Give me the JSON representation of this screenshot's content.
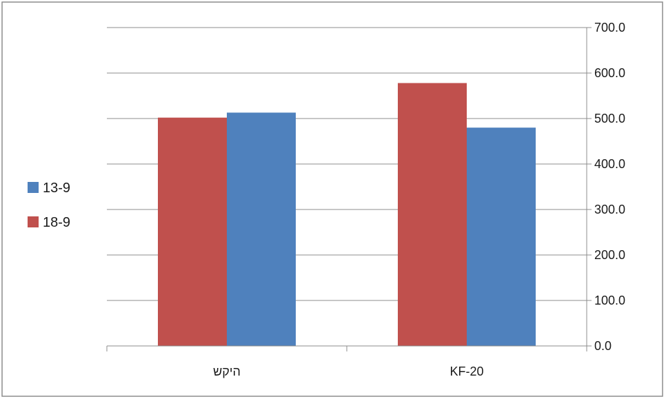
{
  "chart_data": {
    "type": "bar",
    "categories": [
      "היקש",
      "KF-20"
    ],
    "series": [
      {
        "name": "18-9",
        "values": [
          502,
          578
        ],
        "color": "#c0504d"
      },
      {
        "name": "13-9",
        "values": [
          513,
          480
        ],
        "color": "#4f81bd"
      }
    ],
    "ylim": [
      0,
      700
    ],
    "yticks": [
      "0.0",
      "100.0",
      "200.0",
      "300.0",
      "400.0",
      "500.0",
      "600.0",
      "700.0"
    ],
    "y_axis_side": "right",
    "grid": true,
    "legend": {
      "placement": "left",
      "entries": [
        {
          "label": "13-9",
          "color": "#4f81bd"
        },
        {
          "label": "18-9",
          "color": "#c0504d"
        }
      ]
    },
    "title": "",
    "xlabel": "",
    "ylabel": ""
  }
}
